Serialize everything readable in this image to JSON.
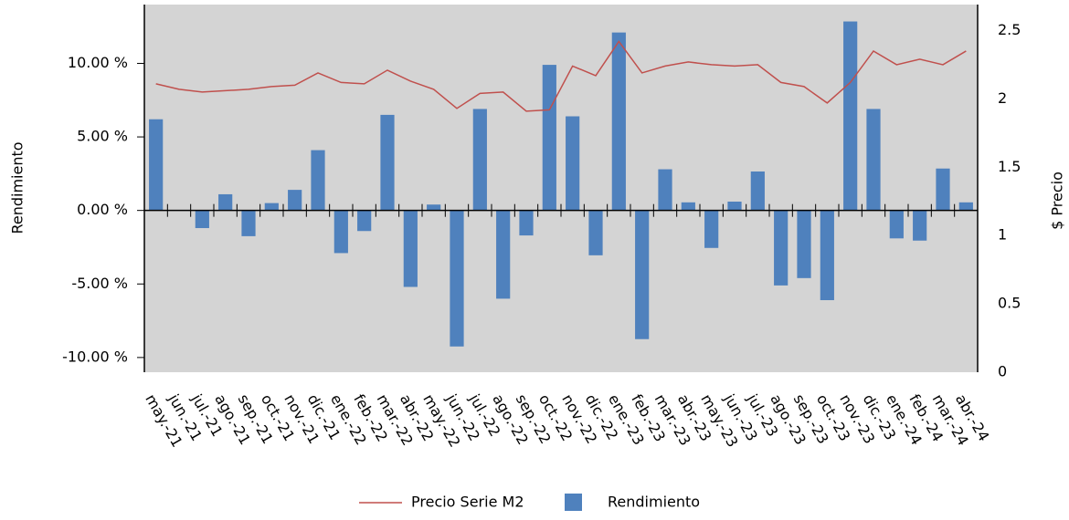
{
  "chart_data": {
    "type": "bar_line",
    "categories": [
      "may.-21",
      "jun.-21",
      "jul.-21",
      "ago.-21",
      "sep.-21",
      "oct.-21",
      "nov.-21",
      "dic.-21",
      "ene.-22",
      "feb.-22",
      "mar.-22",
      "abr.-22",
      "may.-22",
      "jun.-22",
      "jul.-22",
      "ago.-22",
      "sep.-22",
      "oct.-22",
      "nov.-22",
      "dic.-22",
      "ene.-23",
      "feb.-23",
      "mar.-23",
      "abr.-23",
      "may.-23",
      "jun.-23",
      "jul.-23",
      "ago.-23",
      "sep.-23",
      "oct.-23",
      "nov.-23",
      "dic.-23",
      "ene.-24",
      "feb.-24",
      "mar.-24",
      "abr.-24"
    ],
    "series": [
      {
        "name": "Precio Serie M2",
        "type": "line",
        "axis": "y2",
        "color": "#c0504d",
        "values": [
          2.11,
          2.07,
          2.05,
          2.06,
          2.07,
          2.09,
          2.1,
          2.19,
          2.12,
          2.11,
          2.21,
          2.13,
          2.07,
          1.93,
          2.04,
          2.05,
          1.91,
          1.92,
          2.24,
          2.17,
          2.42,
          2.19,
          2.24,
          2.27,
          2.25,
          2.24,
          2.25,
          2.12,
          2.09,
          1.97,
          2.12,
          2.35,
          2.25,
          2.29,
          2.25,
          2.35
        ]
      },
      {
        "name": "Rendimiento",
        "type": "bar",
        "color": "#4f81bd",
        "values": [
          6.2,
          null,
          -1.2,
          1.1,
          -1.75,
          0.5,
          1.4,
          4.1,
          -2.9,
          -1.4,
          6.5,
          -5.2,
          0.4,
          -9.25,
          6.9,
          -6.0,
          -1.7,
          9.9,
          6.4,
          -3.05,
          12.1,
          -8.75,
          2.8,
          0.55,
          -2.55,
          0.6,
          2.65,
          -5.1,
          -4.6,
          -6.1,
          12.85,
          6.9,
          -1.9,
          -2.05,
          2.85,
          0.55
        ]
      }
    ],
    "y_label": "Rendimiento",
    "y2_label": "$ Precio",
    "ylim": [
      -11,
      14
    ],
    "yticks": [
      {
        "value": -10,
        "label": "-10.00 %"
      },
      {
        "value": -5,
        "label": "-5.00 %"
      },
      {
        "value": 0,
        "label": "0.00 %"
      },
      {
        "value": 5,
        "label": "5.00 %"
      },
      {
        "value": 10,
        "label": "10.00 %"
      }
    ],
    "y2lim": [
      0,
      2.69
    ],
    "y2ticks": [
      0,
      0.5,
      1,
      1.5,
      2,
      2.5
    ],
    "plot_background": "#d4d4d4",
    "legend": "bottom"
  }
}
